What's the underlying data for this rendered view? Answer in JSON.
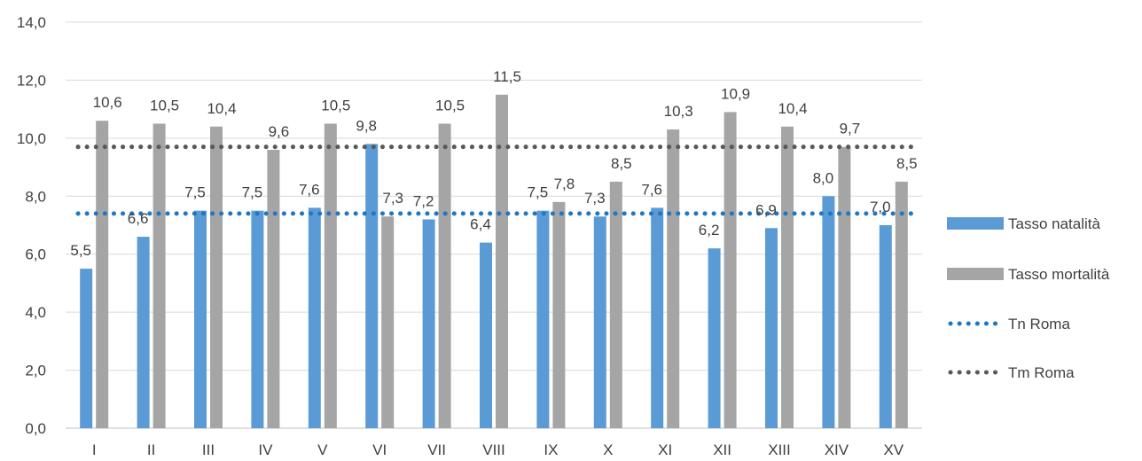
{
  "chart_data": {
    "type": "bar",
    "categories": [
      "I",
      "II",
      "III",
      "IV",
      "V",
      "VI",
      "VII",
      "VIII",
      "IX",
      "X",
      "XI",
      "XII",
      "XIII",
      "XIV",
      "XV"
    ],
    "series": [
      {
        "name": "Tasso natalità",
        "color": "#5b9bd5",
        "values": [
          5.5,
          6.6,
          7.5,
          7.5,
          7.6,
          9.8,
          7.2,
          6.4,
          7.5,
          7.3,
          7.6,
          6.2,
          6.9,
          8.0,
          7.0
        ],
        "labels": [
          "5,5",
          "6,6",
          "7,5",
          "7,5",
          "7,6",
          "9,8",
          "7,2",
          "6,4",
          "7,5",
          "7,3",
          "7,6",
          "6,2",
          "6,9",
          "8,0",
          "7,0"
        ]
      },
      {
        "name": "Tasso mortalità",
        "color": "#a5a5a5",
        "values": [
          10.6,
          10.5,
          10.4,
          9.6,
          10.5,
          7.3,
          10.5,
          11.5,
          7.8,
          8.5,
          10.3,
          10.9,
          10.4,
          9.7,
          8.5
        ],
        "labels": [
          "10,6",
          "10,5",
          "10,4",
          "9,6",
          "10,5",
          "7,3",
          "10,5",
          "11,5",
          "7,8",
          "8,5",
          "10,3",
          "10,9",
          "10,4",
          "9,7",
          "8,5"
        ]
      }
    ],
    "reference_lines": [
      {
        "name": "Tn Roma",
        "value": 7.4,
        "color": "#1f77c4",
        "style": "dotted"
      },
      {
        "name": "Tm Roma",
        "value": 9.7,
        "color": "#595959",
        "style": "dotted"
      }
    ],
    "y_ticks": [
      "0,0",
      "2,0",
      "4,0",
      "6,0",
      "8,0",
      "10,0",
      "12,0",
      "14,0"
    ],
    "y_tick_values": [
      0,
      2,
      4,
      6,
      8,
      10,
      12,
      14
    ],
    "ylim": [
      0,
      14
    ],
    "grid": true,
    "legend_position": "right",
    "title": "",
    "xlabel": "",
    "ylabel": ""
  }
}
